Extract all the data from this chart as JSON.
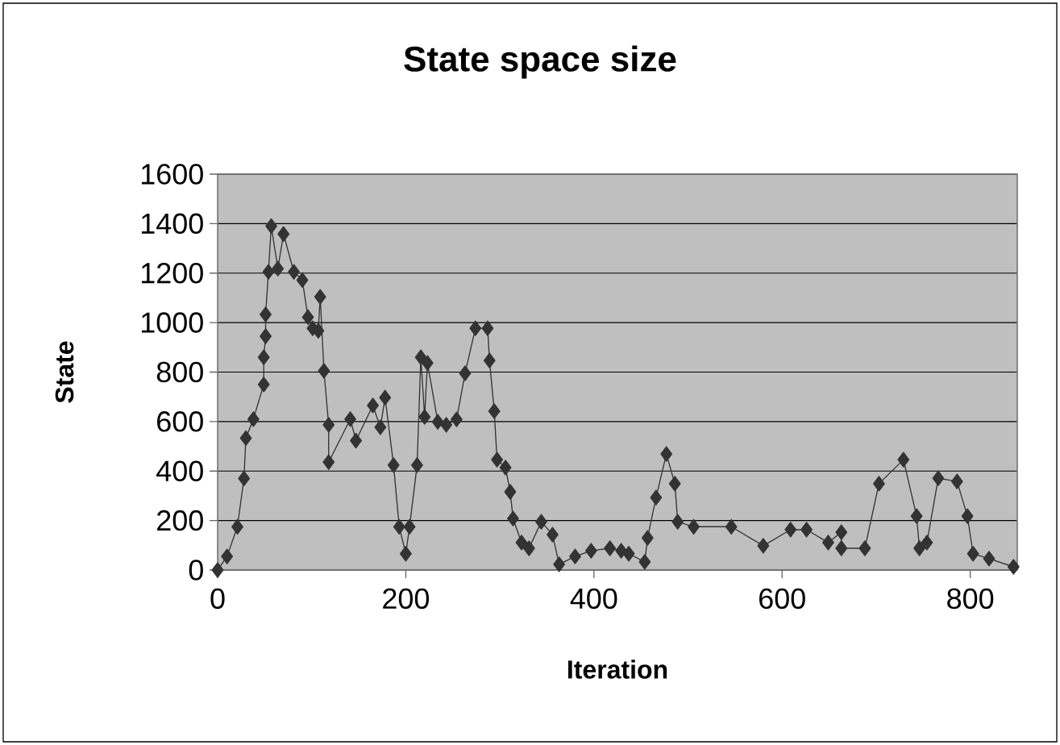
{
  "chart_data": {
    "type": "line",
    "title": "State space size",
    "xlabel": "Iteration",
    "ylabel": "State",
    "xlim": [
      0,
      850
    ],
    "ylim": [
      0,
      1600
    ],
    "xticks": [
      0,
      200,
      400,
      600,
      800
    ],
    "yticks": [
      0,
      200,
      400,
      600,
      800,
      1000,
      1200,
      1400,
      1600
    ],
    "grid": "y",
    "marker": "diamond",
    "line_style": "solid",
    "series": [
      {
        "color": "#333333",
        "x": [
          0,
          10,
          21,
          28,
          30,
          38,
          49,
          49,
          51,
          51,
          54,
          57,
          64,
          70,
          81,
          90,
          96,
          101,
          107,
          109,
          113,
          118,
          118,
          141,
          147,
          165,
          173,
          178,
          187,
          193,
          200,
          204,
          212,
          216,
          220,
          223,
          234,
          243,
          254,
          263,
          274,
          287,
          289,
          294,
          297,
          306,
          311,
          314,
          323,
          331,
          344,
          356,
          363,
          380,
          397,
          417,
          429,
          437,
          454,
          457,
          466,
          477,
          486,
          489,
          506,
          546,
          580,
          609,
          626,
          649,
          663,
          663,
          688,
          703,
          729,
          743,
          746,
          754,
          766,
          786,
          797,
          803,
          820,
          846
        ],
        "values": [
          0,
          55,
          175,
          370,
          533,
          610,
          750,
          860,
          945,
          1033,
          1205,
          1390,
          1218,
          1358,
          1205,
          1172,
          1022,
          977,
          967,
          1104,
          805,
          587,
          436,
          610,
          523,
          665,
          577,
          697,
          424,
          175,
          66,
          175,
          424,
          860,
          619,
          837,
          599,
          587,
          609,
          795,
          977,
          977,
          847,
          642,
          446,
          414,
          316,
          208,
          111,
          88,
          195,
          143,
          23,
          55,
          78,
          88,
          78,
          66,
          33,
          130,
          293,
          469,
          349,
          195,
          175,
          175,
          98,
          163,
          163,
          111,
          153,
          88,
          88,
          349,
          446,
          218,
          88,
          111,
          371,
          358,
          218,
          66,
          46,
          13
        ]
      }
    ]
  }
}
